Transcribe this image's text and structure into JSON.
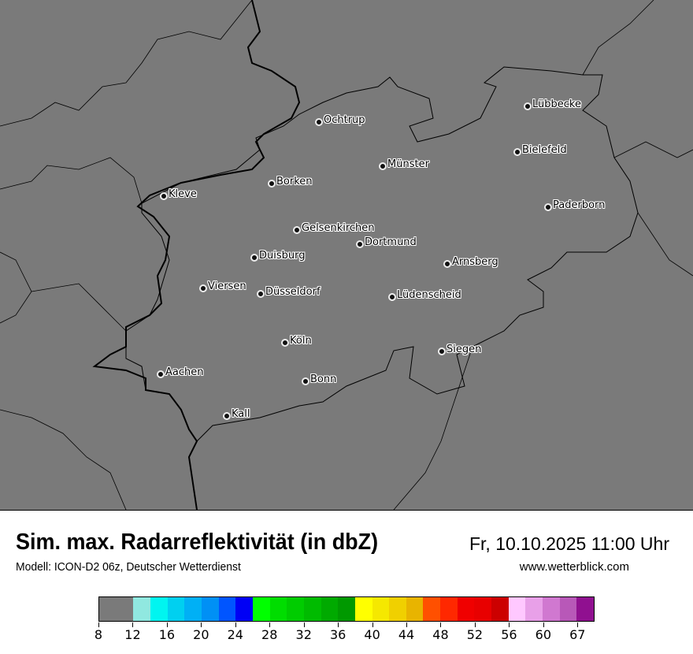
{
  "header": {
    "title": "Sim. max. Radarreflektivität (in dbZ)",
    "datetime": "Fr, 10.10.2025 11:00 Uhr",
    "model": "Modell: ICON-D2 06z, Deutscher Wetterdienst",
    "website": "www.wetterblick.com"
  },
  "map": {
    "background_color": "#7a7a7a",
    "cities": [
      {
        "name": "Ochtrup"
      },
      {
        "name": "Lübbecke"
      },
      {
        "name": "Bielefeld"
      },
      {
        "name": "Münster"
      },
      {
        "name": "Borken"
      },
      {
        "name": "Kleve"
      },
      {
        "name": "Paderborn"
      },
      {
        "name": "Gelsenkirchen"
      },
      {
        "name": "Dortmund"
      },
      {
        "name": "Duisburg"
      },
      {
        "name": "Arnsberg"
      },
      {
        "name": "Viersen"
      },
      {
        "name": "Düsseldorf"
      },
      {
        "name": "Lüdenscheid"
      },
      {
        "name": "Köln"
      },
      {
        "name": "Siegen"
      },
      {
        "name": "Aachen"
      },
      {
        "name": "Bonn"
      },
      {
        "name": "Kall"
      }
    ]
  },
  "legend": {
    "unit": "dbZ",
    "tick_labels": [
      "8",
      "12",
      "16",
      "20",
      "24",
      "28",
      "32",
      "36",
      "40",
      "44",
      "48",
      "52",
      "56",
      "60",
      "67"
    ],
    "colors": [
      "#7a7a7a",
      "#7a7a7a",
      "#90e8e0",
      "#00f5f0",
      "#00d0f0",
      "#00b0f5",
      "#0090f5",
      "#0055ff",
      "#0000f5",
      "#00ff00",
      "#00dd00",
      "#00cc00",
      "#00bb00",
      "#00aa00",
      "#009900",
      "#ffff00",
      "#f5e800",
      "#f0d000",
      "#e8b400",
      "#ff5000",
      "#ff2800",
      "#f00000",
      "#e80000",
      "#cc0000",
      "#ffc8ff",
      "#e8a0e8",
      "#d078d0",
      "#b858b8",
      "#901090"
    ]
  }
}
